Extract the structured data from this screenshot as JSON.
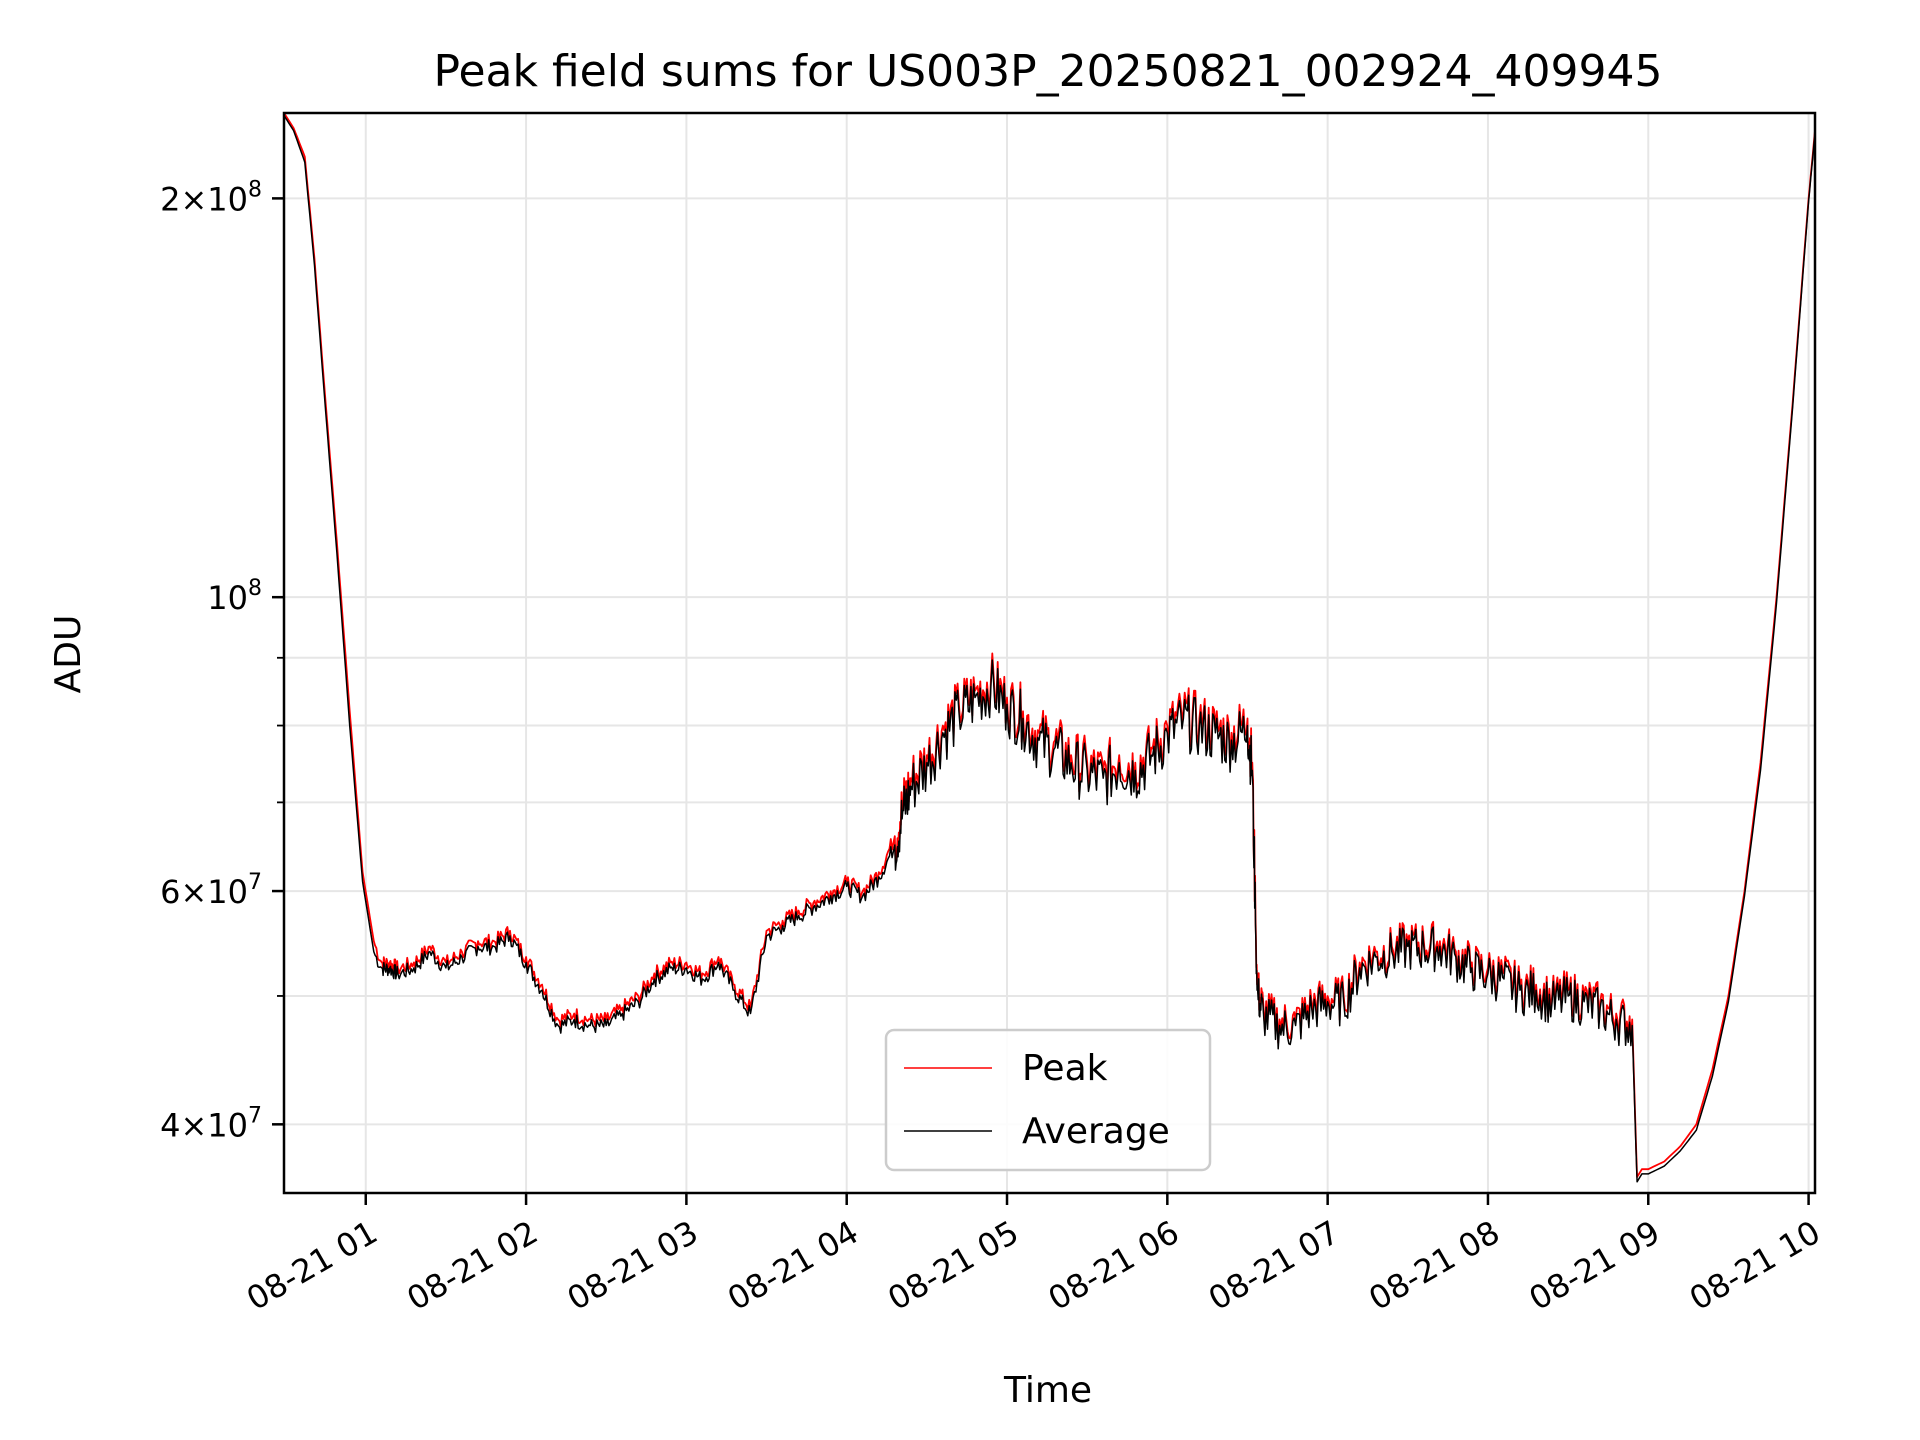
{
  "chart_data": {
    "type": "line",
    "title": "Peak field sums for US003P_20250821_002924_409945",
    "xlabel": "Time",
    "ylabel": "ADU",
    "x_unit": "hours on 2025-08-21 (UTC)",
    "xlim": [
      "08-21 00:29",
      "08-21 10:02"
    ],
    "ylim": [
      35500000,
      232000000
    ],
    "yscale": "log",
    "grid": true,
    "legend_position": "lower-center",
    "x_ticks": [
      "08-21 01",
      "08-21 02",
      "08-21 03",
      "08-21 04",
      "08-21 05",
      "08-21 06",
      "08-21 07",
      "08-21 08",
      "08-21 09",
      "08-21 10"
    ],
    "y_ticks": [
      {
        "value": 40000000,
        "mantissa": "4",
        "exp": "7"
      },
      {
        "value": 60000000,
        "mantissa": "6",
        "exp": "7"
      },
      {
        "value": 100000000,
        "mantissa": "",
        "exp": "8"
      },
      {
        "value": 200000000,
        "mantissa": "2",
        "exp": "8"
      }
    ],
    "series": [
      {
        "name": "Peak",
        "color": "#ff0000",
        "x": [
          0.49,
          0.55,
          0.62,
          0.68,
          0.75,
          0.82,
          0.9,
          0.98,
          1.05,
          1.1,
          1.15,
          1.2,
          1.3,
          1.4,
          1.5,
          1.6,
          1.7,
          1.8,
          1.9,
          2.0,
          2.1,
          2.2,
          2.3,
          2.4,
          2.5,
          2.6,
          2.7,
          2.8,
          2.9,
          3.0,
          3.1,
          3.2,
          3.3,
          3.4,
          3.5,
          3.6,
          3.7,
          3.8,
          3.9,
          4.0,
          4.1,
          4.2,
          4.3,
          4.35,
          4.4,
          4.5,
          4.6,
          4.7,
          4.8,
          4.9,
          5.0,
          5.1,
          5.2,
          5.3,
          5.4,
          5.5,
          5.6,
          5.7,
          5.8,
          5.9,
          6.0,
          6.1,
          6.2,
          6.3,
          6.4,
          6.5,
          6.53,
          6.56,
          6.6,
          6.7,
          6.8,
          6.9,
          7.0,
          7.1,
          7.2,
          7.3,
          7.4,
          7.5,
          7.6,
          7.7,
          7.8,
          7.9,
          8.0,
          8.1,
          8.2,
          8.3,
          8.4,
          8.5,
          8.6,
          8.7,
          8.8,
          8.9,
          8.93,
          8.96,
          9.0,
          9.1,
          9.2,
          9.3,
          9.4,
          9.5,
          9.6,
          9.7,
          9.8,
          9.9,
          10.0,
          10.04
        ],
        "y": [
          232000000,
          226000000,
          215000000,
          180000000,
          140000000,
          110000000,
          82000000,
          62000000,
          55000000,
          53000000,
          53000000,
          52500000,
          53000000,
          54500000,
          53000000,
          54000000,
          55000000,
          55000000,
          56000000,
          53500000,
          51000000,
          48000000,
          48500000,
          48000000,
          48000000,
          49000000,
          50000000,
          52000000,
          53000000,
          53000000,
          52000000,
          53500000,
          51000000,
          49000000,
          56000000,
          57000000,
          58000000,
          59000000,
          60000000,
          61000000,
          60000000,
          62000000,
          66000000,
          70000000,
          73000000,
          76000000,
          80000000,
          83000000,
          85000000,
          87000000,
          84000000,
          82000000,
          79000000,
          78000000,
          76000000,
          75000000,
          74000000,
          76000000,
          75000000,
          77000000,
          80000000,
          82000000,
          81000000,
          80000000,
          79000000,
          81000000,
          75000000,
          51000000,
          49000000,
          48000000,
          48000000,
          49500000,
          50000000,
          50000000,
          53000000,
          54000000,
          54500000,
          55000000,
          55000000,
          55000000,
          54000000,
          53000000,
          52500000,
          52000000,
          51000000,
          51000000,
          50000000,
          50500000,
          50000000,
          49500000,
          48500000,
          48000000,
          36500000,
          37000000,
          37000000,
          37500000,
          38500000,
          40000000,
          44000000,
          50000000,
          60000000,
          75000000,
          100000000,
          140000000,
          200000000,
          225000000
        ]
      },
      {
        "name": "Average",
        "color": "#000000",
        "x": [
          0.49,
          0.55,
          0.62,
          0.68,
          0.75,
          0.82,
          0.9,
          0.98,
          1.05,
          1.1,
          1.15,
          1.2,
          1.3,
          1.4,
          1.5,
          1.6,
          1.7,
          1.8,
          1.9,
          2.0,
          2.1,
          2.2,
          2.3,
          2.4,
          2.5,
          2.6,
          2.7,
          2.8,
          2.9,
          3.0,
          3.1,
          3.2,
          3.3,
          3.4,
          3.5,
          3.6,
          3.7,
          3.8,
          3.9,
          4.0,
          4.1,
          4.2,
          4.3,
          4.35,
          4.4,
          4.5,
          4.6,
          4.7,
          4.8,
          4.9,
          5.0,
          5.1,
          5.2,
          5.3,
          5.4,
          5.5,
          5.6,
          5.7,
          5.8,
          5.9,
          6.0,
          6.1,
          6.2,
          6.3,
          6.4,
          6.5,
          6.53,
          6.56,
          6.6,
          6.7,
          6.8,
          6.9,
          7.0,
          7.1,
          7.2,
          7.3,
          7.4,
          7.5,
          7.6,
          7.7,
          7.8,
          7.9,
          8.0,
          8.1,
          8.2,
          8.3,
          8.4,
          8.5,
          8.6,
          8.7,
          8.8,
          8.9,
          8.93,
          8.96,
          9.0,
          9.1,
          9.2,
          9.3,
          9.4,
          9.5,
          9.6,
          9.7,
          9.8,
          9.9,
          10.0,
          10.04
        ],
        "y": [
          231000000,
          225000000,
          213000000,
          178000000,
          138000000,
          108000000,
          80000000,
          61000000,
          54000000,
          52500000,
          52500000,
          52000000,
          52500000,
          54000000,
          52500000,
          53500000,
          54500000,
          54500000,
          55500000,
          53000000,
          50500000,
          47500000,
          48000000,
          47500000,
          47500000,
          48500000,
          49500000,
          51500000,
          52500000,
          52500000,
          51500000,
          53000000,
          50500000,
          48500000,
          55500000,
          56500000,
          57500000,
          58500000,
          59500000,
          60500000,
          59500000,
          61500000,
          65000000,
          69000000,
          72000000,
          75000000,
          79000000,
          82000000,
          84000000,
          86000000,
          83000000,
          81000000,
          78000000,
          77000000,
          75000000,
          74000000,
          73000000,
          75000000,
          74000000,
          76000000,
          79000000,
          81000000,
          80000000,
          79000000,
          78000000,
          80000000,
          74000000,
          50500000,
          48500000,
          47500000,
          47500000,
          49000000,
          49500000,
          49500000,
          52500000,
          53500000,
          54000000,
          54500000,
          54500000,
          54500000,
          53500000,
          52500000,
          52000000,
          51500000,
          50500000,
          50500000,
          49500000,
          50000000,
          49500000,
          49000000,
          48000000,
          47500000,
          36200000,
          36700000,
          36700000,
          37200000,
          38200000,
          39600000,
          43500000,
          49500000,
          59500000,
          74000000,
          99000000,
          139000000,
          199000000,
          224000000
        ]
      }
    ]
  }
}
